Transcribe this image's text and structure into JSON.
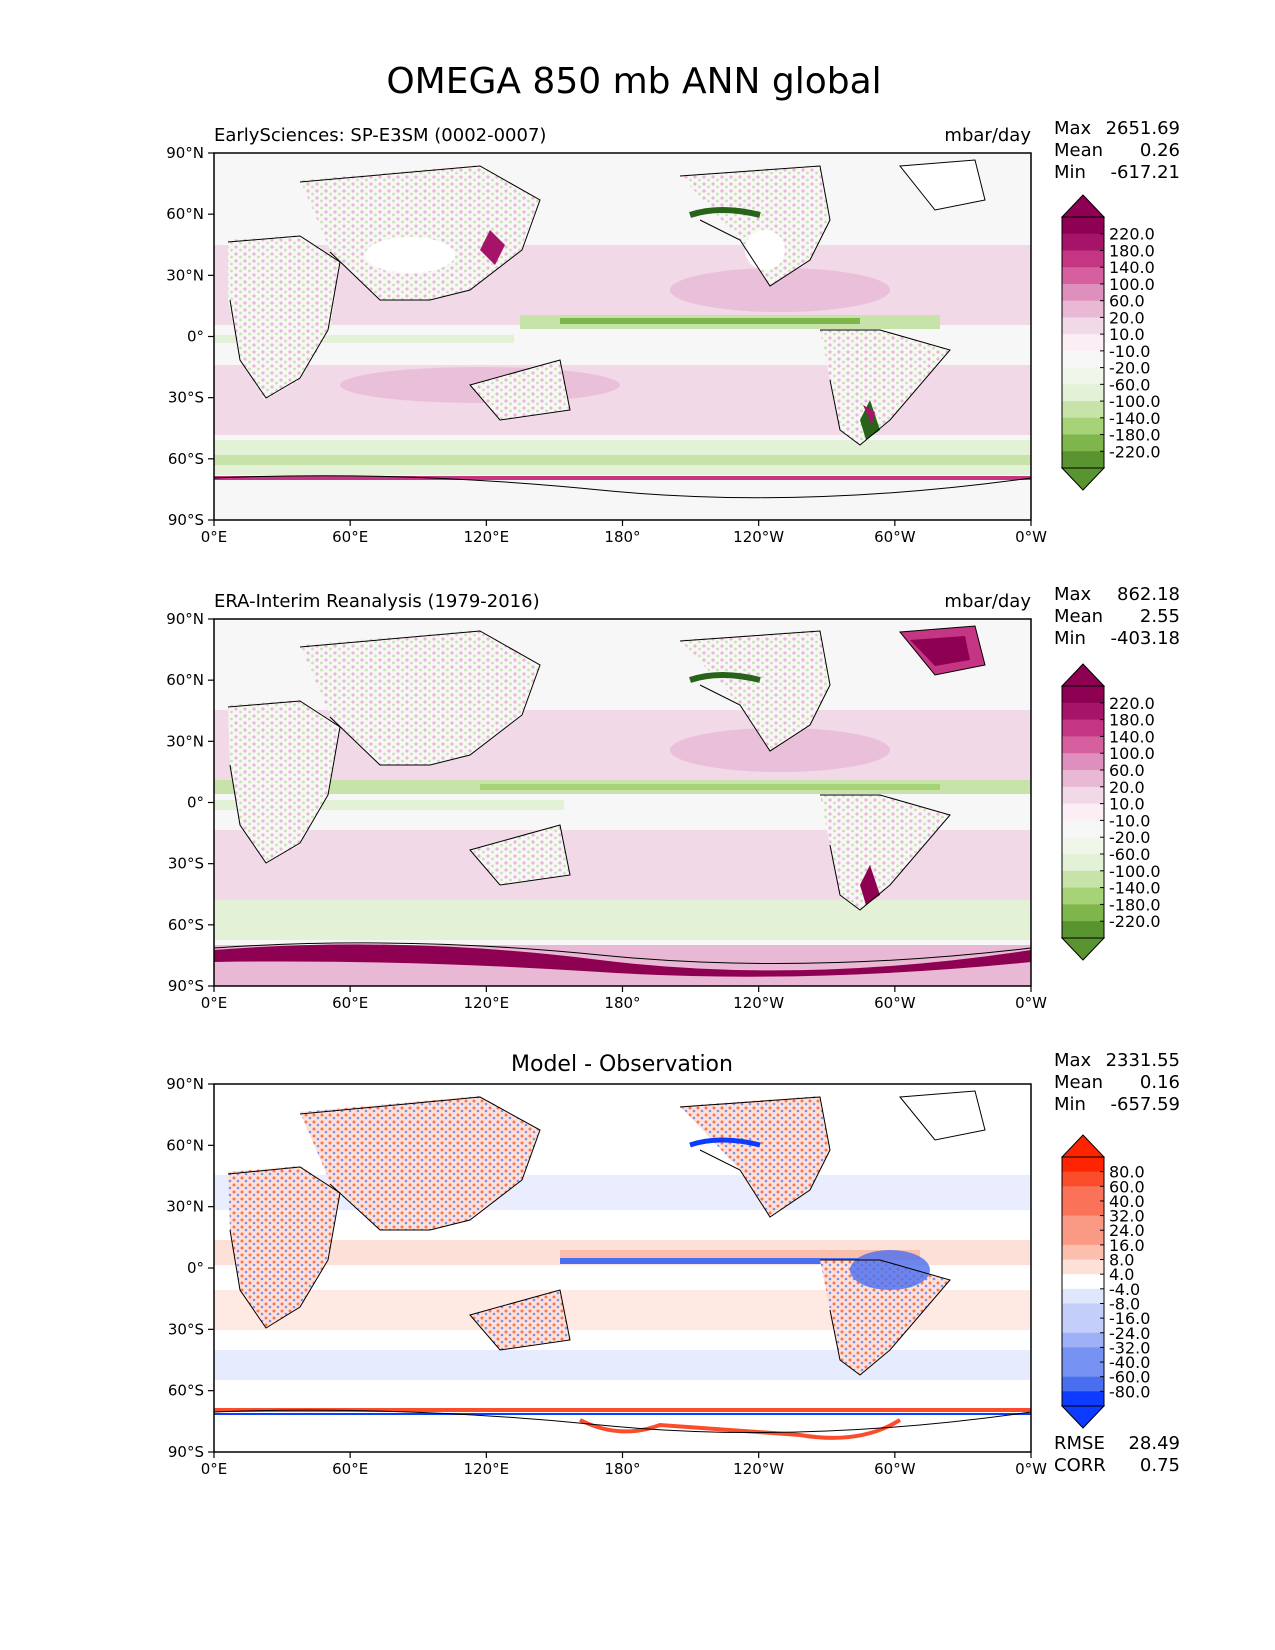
{
  "title": "OMEGA 850 mb ANN global",
  "axes": {
    "lat_ticks": [
      "90°N",
      "60°N",
      "30°N",
      "0°",
      "30°S",
      "60°S",
      "90°S"
    ],
    "lon_ticks": [
      "0°E",
      "60°E",
      "120°E",
      "180°",
      "120°W",
      "60°W",
      "0°W"
    ]
  },
  "colors": {
    "pos": [
      "#f1d9e8",
      "#e9b8d4",
      "#df8fbd",
      "#d6609f",
      "#c43683",
      "#a6146a",
      "#8e0152"
    ],
    "neg": [
      "#e3f1d6",
      "#c8e3a9",
      "#a6d278",
      "#7fb64b",
      "#5a9430",
      "#3e7a1f",
      "#276419"
    ],
    "neutral": "#f7f7f7",
    "diff_pos": [
      "#fde0d7",
      "#fcbfae",
      "#fb9a84",
      "#fa7257",
      "#fb4d2c",
      "#ff2400"
    ],
    "diff_neg": [
      "#e0e6fc",
      "#c3cffa",
      "#9eb0f6",
      "#7692f2",
      "#4a6ef0",
      "#0d3bff"
    ]
  },
  "panels": [
    {
      "title": "EarlySciences: SP-E3SM (0002-0007)",
      "units": "mbar/day",
      "stats": {
        "max_label": "Max",
        "max": "2651.69",
        "mean_label": "Mean",
        "mean": "0.26",
        "min_label": "Min",
        "min": "-617.21"
      },
      "colorbar_levels": [
        "220.0",
        "180.0",
        "140.0",
        "100.0",
        "60.0",
        "20.0",
        "10.0",
        "-10.0",
        "-20.0",
        "-60.0",
        "-100.0",
        "-140.0",
        "-180.0",
        "-220.0"
      ]
    },
    {
      "title": "ERA-Interim Reanalysis (1979-2016)",
      "units": "mbar/day",
      "stats": {
        "max_label": "Max",
        "max": "862.18",
        "mean_label": "Mean",
        "mean": "2.55",
        "min_label": "Min",
        "min": "-403.18"
      },
      "colorbar_levels": [
        "220.0",
        "180.0",
        "140.0",
        "100.0",
        "60.0",
        "20.0",
        "10.0",
        "-10.0",
        "-20.0",
        "-60.0",
        "-100.0",
        "-140.0",
        "-180.0",
        "-220.0"
      ]
    },
    {
      "title": "Model - Observation",
      "units": "",
      "stats": {
        "max_label": "Max",
        "max": "2331.55",
        "mean_label": "Mean",
        "mean": "0.16",
        "min_label": "Min",
        "min": "-657.59"
      },
      "colorbar_levels": [
        "80.0",
        "60.0",
        "40.0",
        "32.0",
        "24.0",
        "16.0",
        "8.0",
        "4.0",
        "-4.0",
        "-8.0",
        "-16.0",
        "-24.0",
        "-32.0",
        "-40.0",
        "-60.0",
        "-80.0"
      ],
      "rmse_label": "RMSE",
      "rmse": "28.49",
      "corr_label": "CORR",
      "corr": "0.75"
    }
  ]
}
